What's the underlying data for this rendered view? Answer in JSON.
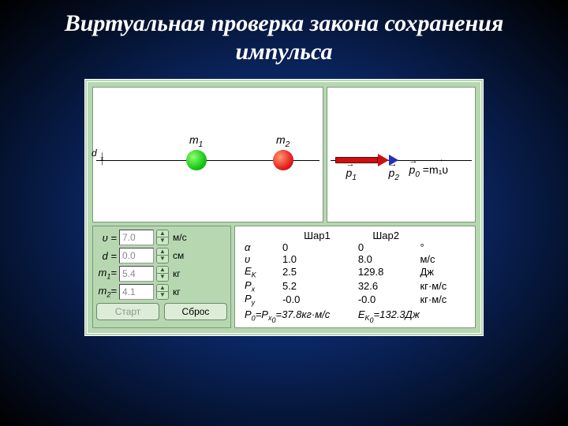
{
  "slide": {
    "title": "Виртуальная проверка закона сохранения импульса"
  },
  "colors": {
    "panel_bg": "#b7d7b1",
    "ball1": "#18c818",
    "ball2": "#e82020",
    "vector_red": "#cc1010",
    "vector_blue": "#2030c0"
  },
  "sim": {
    "ball1_label": "m",
    "ball1_sub": "1",
    "ball2_label": "m",
    "ball2_sub": "2",
    "d_label": "d",
    "p1": "p",
    "p1_sub": "1",
    "p2": "p",
    "p2_sub": "2",
    "p0": "p",
    "p0_sub": "0",
    "p0_rhs": "=m₁υ"
  },
  "inputs": {
    "v": {
      "label": "υ",
      "value": "7.0",
      "unit": "м/с"
    },
    "d": {
      "label": "d",
      "value": "0.0",
      "unit": "см"
    },
    "m1": {
      "label": "m",
      "sub": "1",
      "value": "5.4",
      "unit": "кг"
    },
    "m2": {
      "label": "m",
      "sub": "2",
      "value": "4.1",
      "unit": "кг"
    }
  },
  "buttons": {
    "start": "Старт",
    "reset": "Сброс"
  },
  "results": {
    "head1": "Шар1",
    "head2": "Шар2",
    "rows": [
      {
        "sym": "α",
        "sub": "",
        "v1": "0",
        "v2": "0",
        "unit": "°"
      },
      {
        "sym": "υ",
        "sub": "",
        "v1": "1.0",
        "v2": "8.0",
        "unit": "м/с"
      },
      {
        "sym": "E",
        "sub": "K",
        "v1": "2.5",
        "v2": "129.8",
        "unit": "Дж"
      },
      {
        "sym": "P",
        "sub": "x",
        "v1": "5.2",
        "v2": "32.6",
        "unit": "кг·м/с"
      },
      {
        "sym": "P",
        "sub": "y",
        "v1": "-0.0",
        "v2": "-0.0",
        "unit": "кг·м/с"
      }
    ],
    "summary_p": "P₀=P_x₀=37.8кг·м/с",
    "summary_e": "E_K₀=132.3Дж"
  }
}
